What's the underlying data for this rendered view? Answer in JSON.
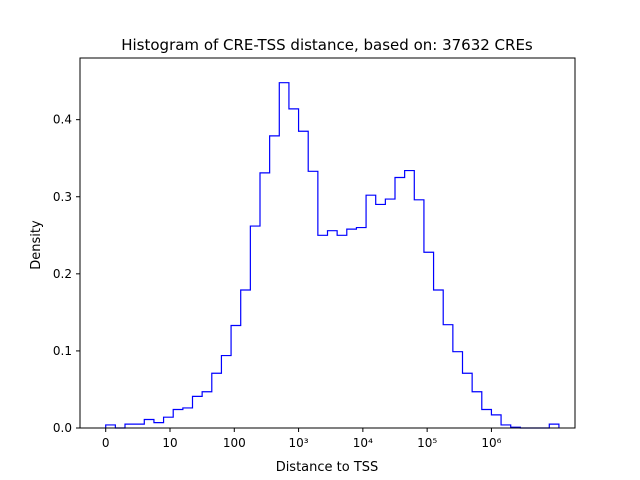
{
  "chart_data": {
    "type": "histogram-step",
    "title": "Histogram of CRE-TSS distance, based on: 37632 CREs",
    "xlabel": "Distance to TSS",
    "ylabel": "Density",
    "x_scale": "log-like (symlog)",
    "xlim": [
      -0.4,
      7.3
    ],
    "ylim": [
      0,
      0.48
    ],
    "x_ticks": [
      {
        "value": 0,
        "label": "0"
      },
      {
        "value": 1,
        "label": "10"
      },
      {
        "value": 2,
        "label": "100"
      },
      {
        "value": 3,
        "label": "10³"
      },
      {
        "value": 4,
        "label": "10⁴"
      },
      {
        "value": 5,
        "label": "10⁵"
      },
      {
        "value": 6,
        "label": "10⁶"
      }
    ],
    "y_ticks": [
      {
        "value": 0.0,
        "label": "0.0"
      },
      {
        "value": 0.1,
        "label": "0.1"
      },
      {
        "value": 0.2,
        "label": "0.2"
      },
      {
        "value": 0.3,
        "label": "0.3"
      },
      {
        "value": 0.4,
        "label": "0.4"
      }
    ],
    "grid": false,
    "line_color": "#0000ff",
    "bin_edges_log10": [
      0,
      0.15,
      0.3,
      0.45,
      0.6,
      0.75,
      0.9,
      1.05,
      1.2,
      1.35,
      1.5,
      1.65,
      1.8,
      1.95,
      2.1,
      2.25,
      2.4,
      2.55,
      2.7,
      2.85,
      3.0,
      3.15,
      3.3,
      3.45,
      3.6,
      3.75,
      3.9,
      4.05,
      4.2,
      4.35,
      4.5,
      4.65,
      4.8,
      4.95,
      5.1,
      5.25,
      5.4,
      5.55,
      5.7,
      5.85,
      6.0,
      6.15,
      6.3,
      6.45,
      6.6,
      6.75,
      6.9,
      7.05
    ],
    "densities": [
      0.004,
      0.0,
      0.005,
      0.005,
      0.011,
      0.007,
      0.014,
      0.024,
      0.026,
      0.041,
      0.047,
      0.071,
      0.094,
      0.133,
      0.179,
      0.262,
      0.331,
      0.379,
      0.448,
      0.414,
      0.385,
      0.333,
      0.25,
      0.256,
      0.25,
      0.258,
      0.26,
      0.302,
      0.29,
      0.297,
      0.325,
      0.334,
      0.296,
      0.228,
      0.179,
      0.134,
      0.099,
      0.071,
      0.047,
      0.024,
      0.017,
      0.004,
      0.001,
      0.0,
      0.0,
      0.0,
      0.005
    ]
  }
}
